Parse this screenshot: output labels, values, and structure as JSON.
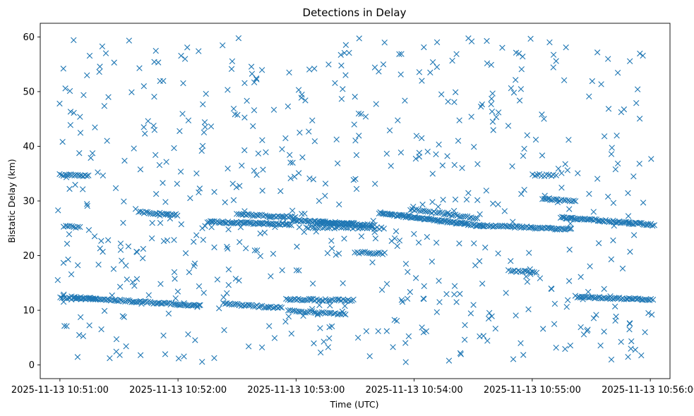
{
  "chart_data": {
    "type": "scatter",
    "title": "Detections in Delay",
    "xlabel": "Time (UTC)",
    "ylabel": "Bistatic Delay (km)",
    "marker": "x",
    "color": "#1f77b4",
    "xlim": [
      -10,
      310
    ],
    "ylim": [
      -2.5,
      62.5
    ],
    "x_unit": "seconds since 2025-11-13 10:51:00",
    "xticks": [
      {
        "value": 0,
        "label": "2025-11-13 10:51:00"
      },
      {
        "value": 60,
        "label": "2025-11-13 10:52:00"
      },
      {
        "value": 120,
        "label": "2025-11-13 10:53:00"
      },
      {
        "value": 180,
        "label": "2025-11-13 10:54:00"
      },
      {
        "value": 240,
        "label": "2025-11-13 10:55:00"
      },
      {
        "value": 300,
        "label": "2025-11-13 10:56:00"
      }
    ],
    "yticks": [
      {
        "value": 0,
        "label": "0"
      },
      {
        "value": 10,
        "label": "10"
      },
      {
        "value": 20,
        "label": "20"
      },
      {
        "value": 30,
        "label": "30"
      },
      {
        "value": 40,
        "label": "40"
      },
      {
        "value": 50,
        "label": "50"
      },
      {
        "value": 60,
        "label": "60"
      }
    ],
    "tracks": [
      {
        "t_start": 5,
        "t_end": 72,
        "delay_start": 12.4,
        "delay_end": 10.8,
        "step": 0.8,
        "note": "descending lower track"
      },
      {
        "t_start": 83,
        "t_end": 113,
        "delay_start": 11.2,
        "delay_end": 10.4,
        "step": 0.9
      },
      {
        "t_start": 115,
        "t_end": 150,
        "delay_start": 12.0,
        "delay_end": 11.8,
        "step": 0.9
      },
      {
        "t_start": 116,
        "t_end": 145,
        "delay_start": 10.0,
        "delay_end": 9.2,
        "step": 1.0
      },
      {
        "t_start": 262,
        "t_end": 302,
        "delay_start": 12.5,
        "delay_end": 11.9,
        "step": 0.8
      },
      {
        "t_start": 75,
        "t_end": 118,
        "delay_start": 26.2,
        "delay_end": 25.7,
        "step": 0.7
      },
      {
        "t_start": 90,
        "t_end": 120,
        "delay_start": 27.6,
        "delay_end": 27.0,
        "step": 0.9
      },
      {
        "t_start": 118,
        "t_end": 160,
        "delay_start": 26.5,
        "delay_end": 25.5,
        "step": 0.7
      },
      {
        "t_start": 125,
        "t_end": 165,
        "delay_start": 25.2,
        "delay_end": 25.0,
        "step": 1.2
      },
      {
        "t_start": 162,
        "t_end": 215,
        "delay_start": 27.8,
        "delay_end": 25.4,
        "step": 0.6
      },
      {
        "t_start": 215,
        "t_end": 260,
        "delay_start": 25.5,
        "delay_end": 24.8,
        "step": 0.8
      },
      {
        "t_start": 255,
        "t_end": 302,
        "delay_start": 27.0,
        "delay_end": 25.6,
        "step": 0.7
      },
      {
        "t_start": 178,
        "t_end": 212,
        "delay_start": 28.5,
        "delay_end": 26.8,
        "step": 1.0
      },
      {
        "t_start": 40,
        "t_end": 60,
        "delay_start": 28.0,
        "delay_end": 27.4,
        "step": 0.9
      },
      {
        "t_start": 0,
        "t_end": 15,
        "delay_start": 34.8,
        "delay_end": 34.6,
        "step": 0.9
      },
      {
        "t_start": 2,
        "t_end": 10,
        "delay_start": 25.3,
        "delay_end": 25.2,
        "step": 1.0
      },
      {
        "t_start": 0,
        "t_end": 18,
        "delay_start": 12.2,
        "delay_end": 12.0,
        "step": 1.2
      },
      {
        "t_start": 245,
        "t_end": 262,
        "delay_start": 30.3,
        "delay_end": 30.0,
        "step": 1.0
      },
      {
        "t_start": 228,
        "t_end": 242,
        "delay_start": 17.2,
        "delay_end": 17.0,
        "step": 1.0
      },
      {
        "t_start": 150,
        "t_end": 165,
        "delay_start": 20.6,
        "delay_end": 20.4,
        "step": 1.0
      },
      {
        "t_start": 240,
        "t_end": 252,
        "delay_start": 34.8,
        "delay_end": 34.6,
        "step": 1.2
      },
      {
        "t_start": 130,
        "t_end": 150,
        "delay_start": 26.0,
        "delay_end": 25.8,
        "step": 0.8
      }
    ],
    "clutter": {
      "t_range": [
        -2,
        302
      ],
      "delay_range": [
        0.5,
        59.8
      ],
      "count": 620,
      "note": "scattered false detections across the full plot area"
    }
  }
}
